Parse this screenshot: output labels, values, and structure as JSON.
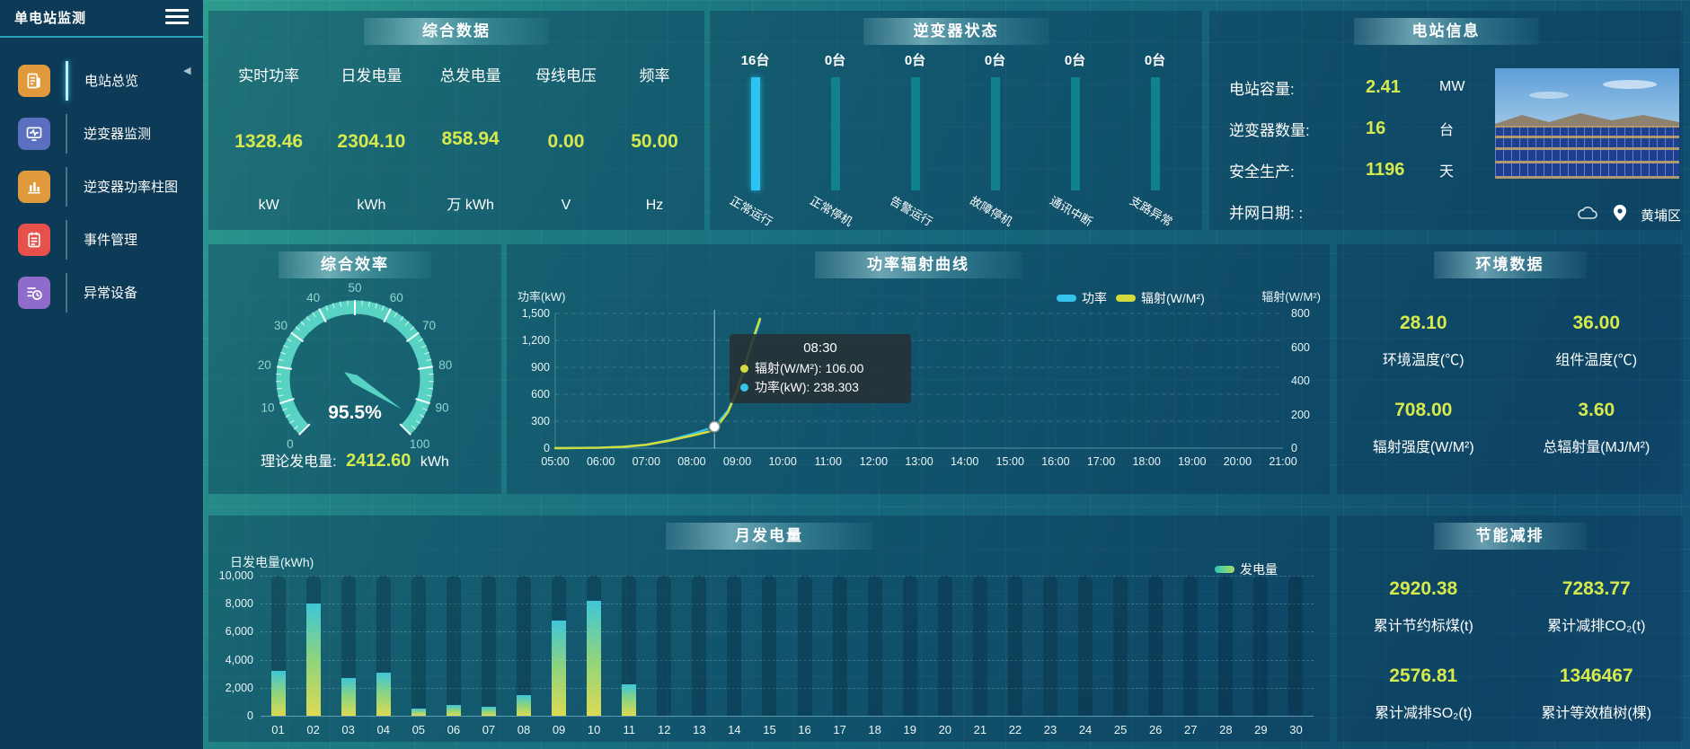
{
  "app": {
    "title": "单电站监测"
  },
  "sidebar": {
    "items": [
      {
        "label": "电站总览",
        "icon": "overview-doc-icon",
        "icon_color": "#e09a3c",
        "active": true
      },
      {
        "label": "逆变器监测",
        "icon": "inverter-monitor-icon",
        "icon_color": "#5a6fc0",
        "active": false
      },
      {
        "label": "逆变器功率柱图",
        "icon": "power-bars-icon",
        "icon_color": "#e09a3c",
        "active": false
      },
      {
        "label": "事件管理",
        "icon": "event-notebook-icon",
        "icon_color": "#e8514b",
        "active": false
      },
      {
        "label": "异常设备",
        "icon": "abnormal-device-icon",
        "icon_color": "#8f6bcb",
        "active": false
      }
    ]
  },
  "panels": {
    "summary": {
      "title": "综合数据",
      "metrics": [
        {
          "label": "实时功率",
          "value": "1328.46",
          "unit": "kW"
        },
        {
          "label": "日发电量",
          "value": "2304.10",
          "unit": "kWh"
        },
        {
          "label": "总发电量",
          "value": "858.94",
          "unit": "万 kWh"
        },
        {
          "label": "母线电压",
          "value": "0.00",
          "unit": "V"
        },
        {
          "label": "频率",
          "value": "50.00",
          "unit": "Hz"
        }
      ]
    },
    "inverter_status": {
      "title": "逆变器状态",
      "unit_suffix": "台",
      "bars": [
        {
          "count": 16,
          "label": "正常运行",
          "highlight": true
        },
        {
          "count": 0,
          "label": "正常停机",
          "highlight": false
        },
        {
          "count": 0,
          "label": "告警运行",
          "highlight": false
        },
        {
          "count": 0,
          "label": "故障停机",
          "highlight": false
        },
        {
          "count": 0,
          "label": "通讯中断",
          "highlight": false
        },
        {
          "count": 0,
          "label": "支路异常",
          "highlight": false
        }
      ]
    },
    "station_info": {
      "title": "电站信息",
      "rows": [
        {
          "label": "电站容量:",
          "value": "2.41",
          "unit": "MW"
        },
        {
          "label": "逆变器数量:",
          "value": "16",
          "unit": "台"
        },
        {
          "label": "安全生产:",
          "value": "1196",
          "unit": "天"
        },
        {
          "label": "并网日期:  :",
          "value": "",
          "unit": ""
        }
      ],
      "location": "黄埔区"
    },
    "efficiency": {
      "title": "综合效率",
      "theory_label": "理论发电量:",
      "theory_value": "2412.60",
      "theory_unit": "kWh"
    },
    "power_curve": {
      "title": "功率辐射曲线"
    },
    "environment": {
      "title": "环境数据",
      "metrics": [
        {
          "value": "28.10",
          "label": "环境温度(℃)"
        },
        {
          "value": "36.00",
          "label": "组件温度(℃)"
        },
        {
          "value": "708.00",
          "label": "辐射强度(W/M²)"
        },
        {
          "value": "3.60",
          "label": "总辐射量(MJ/M²)"
        }
      ]
    },
    "monthly": {
      "title": "月发电量"
    },
    "savings": {
      "title": "节能减排",
      "metrics": [
        {
          "value": "2920.38",
          "label": "累计节约标煤(t)"
        },
        {
          "value": "7283.77",
          "label": "累计减排CO₂(t)"
        },
        {
          "value": "2576.81",
          "label": "累计减排SO₂(t)"
        },
        {
          "value": "1346467",
          "label": "累计等效植树(棵)"
        }
      ]
    }
  },
  "chart_data": [
    {
      "id": "power_radiation_curve",
      "type": "line",
      "title": "功率辐射曲线",
      "y_left": {
        "name": "功率(kW)",
        "range": [
          0,
          1500
        ],
        "ticks": [
          "1,500",
          "1,200",
          "900",
          "600",
          "300",
          "0"
        ]
      },
      "y_right": {
        "name": "辐射(W/M²)",
        "range": [
          0,
          800
        ],
        "ticks": [
          "800",
          "600",
          "400",
          "200",
          "0"
        ]
      },
      "x_range": [
        5,
        21
      ],
      "x_ticks": [
        "05:00",
        "06:00",
        "07:00",
        "08:00",
        "09:00",
        "10:00",
        "11:00",
        "12:00",
        "13:00",
        "14:00",
        "15:00",
        "16:00",
        "17:00",
        "18:00",
        "19:00",
        "20:00",
        "21:00"
      ],
      "legend": [
        {
          "name": "功率",
          "color": "#35c3ee"
        },
        {
          "name": "辐射(W/M²)",
          "color": "#d3dc3e"
        }
      ],
      "series": [
        {
          "name": "功率",
          "axis": "left",
          "color": "#35c3ee",
          "points": [
            [
              5,
              0
            ],
            [
              5.5,
              2
            ],
            [
              6,
              5
            ],
            [
              6.5,
              14
            ],
            [
              7,
              38
            ],
            [
              7.5,
              88
            ],
            [
              8,
              155
            ],
            [
              8.5,
              238.3
            ],
            [
              8.8,
              420
            ],
            [
              9,
              640
            ],
            [
              9.2,
              960
            ],
            [
              9.35,
              1200
            ],
            [
              9.5,
              1420
            ]
          ]
        },
        {
          "name": "辐射(W/M²)",
          "axis": "right",
          "color": "#d3dc3e",
          "points": [
            [
              5,
              0
            ],
            [
              5.5,
              1
            ],
            [
              6,
              3
            ],
            [
              6.5,
              8
            ],
            [
              7,
              20
            ],
            [
              7.5,
              44
            ],
            [
              8,
              74
            ],
            [
              8.5,
              106
            ],
            [
              8.8,
              215
            ],
            [
              9,
              345
            ],
            [
              9.2,
              520
            ],
            [
              9.35,
              650
            ],
            [
              9.5,
              768
            ]
          ]
        }
      ],
      "tooltip": {
        "x": 8.5,
        "title": "08:30",
        "items": [
          {
            "color": "#d3dc3e",
            "text": "辐射(W/M²): 106.00"
          },
          {
            "color": "#35c3ee",
            "text": "功率(kW): 238.303"
          }
        ],
        "marker_value": 238.3
      }
    },
    {
      "id": "monthly_generation",
      "type": "bar",
      "title": "月发电量",
      "ylabel": "日发电量(kWh)",
      "ylim": [
        0,
        10000
      ],
      "y_ticks": [
        "10,000",
        "8,000",
        "6,000",
        "4,000",
        "2,000",
        "0"
      ],
      "legend": [
        {
          "name": "发电量"
        }
      ],
      "categories": [
        "01",
        "02",
        "03",
        "04",
        "05",
        "06",
        "07",
        "08",
        "09",
        "10",
        "11",
        "12",
        "13",
        "14",
        "15",
        "16",
        "17",
        "18",
        "19",
        "20",
        "21",
        "22",
        "23",
        "24",
        "25",
        "26",
        "27",
        "28",
        "29",
        "30"
      ],
      "values": [
        3200,
        8000,
        2700,
        3100,
        500,
        750,
        650,
        1500,
        6800,
        8200,
        2250,
        0,
        0,
        0,
        0,
        0,
        0,
        0,
        0,
        0,
        0,
        0,
        0,
        0,
        0,
        0,
        0,
        0,
        0,
        0
      ]
    },
    {
      "id": "efficiency_gauge",
      "type": "gauge",
      "value": 95.5,
      "min": 0,
      "max": 100,
      "label": "95.5%",
      "tick_labels": [
        "0",
        "10",
        "20",
        "30",
        "40",
        "50",
        "60",
        "70",
        "80",
        "90",
        "100"
      ]
    },
    {
      "id": "inverter_status_bars",
      "type": "bar",
      "categories": [
        "正常运行",
        "正常停机",
        "告警运行",
        "故障停机",
        "通讯中断",
        "支路异常"
      ],
      "values": [
        16,
        0,
        0,
        0,
        0,
        0
      ],
      "unit": "台"
    }
  ]
}
